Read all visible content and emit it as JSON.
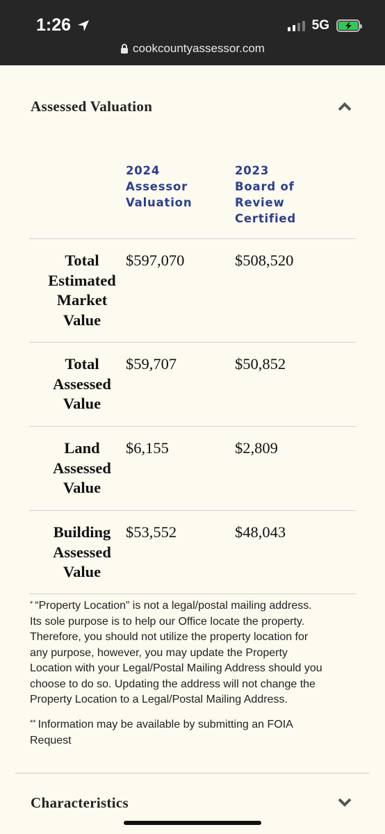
{
  "status_bar": {
    "time": "1:26",
    "network": "5G"
  },
  "browser": {
    "url": "cookcountyassessor.com"
  },
  "assessed_valuation": {
    "title": "Assessed Valuation",
    "columns": [
      {
        "lines": [
          "2024",
          "Assessor",
          "Valuation"
        ]
      },
      {
        "lines": [
          "2023",
          "Board of",
          "Review",
          "Certified"
        ]
      }
    ],
    "rows": [
      {
        "label_lines": [
          "Total",
          "Estimated",
          "Market",
          "Value"
        ],
        "col1": "$597,070",
        "col2": "$508,520"
      },
      {
        "label_lines": [
          "Total",
          "Assessed",
          "Value"
        ],
        "col1": "$59,707",
        "col2": "$50,852"
      },
      {
        "label_lines": [
          "Land",
          "Assessed",
          "Value"
        ],
        "col1": "$6,155",
        "col2": "$2,809"
      },
      {
        "label_lines": [
          "Building",
          "Assessed",
          "Value"
        ],
        "col1": "$53,552",
        "col2": "$48,043"
      }
    ],
    "footnote1_mark": "*",
    "footnote1_lines": [
      "“Property Location” is not a legal/postal mailing address.",
      "Its sole purpose is to help our Office locate the property.",
      "Therefore, you should not utilize the property location for",
      "any purpose, however, you may update the Property",
      "Location with your Legal/Postal Mailing Address should you",
      "choose to do so. Updating the address will not change the",
      "Property Location to a Legal/Postal Mailing Address."
    ],
    "footnote2_mark": "**",
    "footnote2_lines": [
      "Information may be available by submitting an FOIA",
      "Request"
    ]
  },
  "characteristics": {
    "title": "Characteristics"
  },
  "colors": {
    "accent": "#2c3e8c",
    "background": "#fdfaf0",
    "topbar": "#262626",
    "battery": "#34c759"
  }
}
